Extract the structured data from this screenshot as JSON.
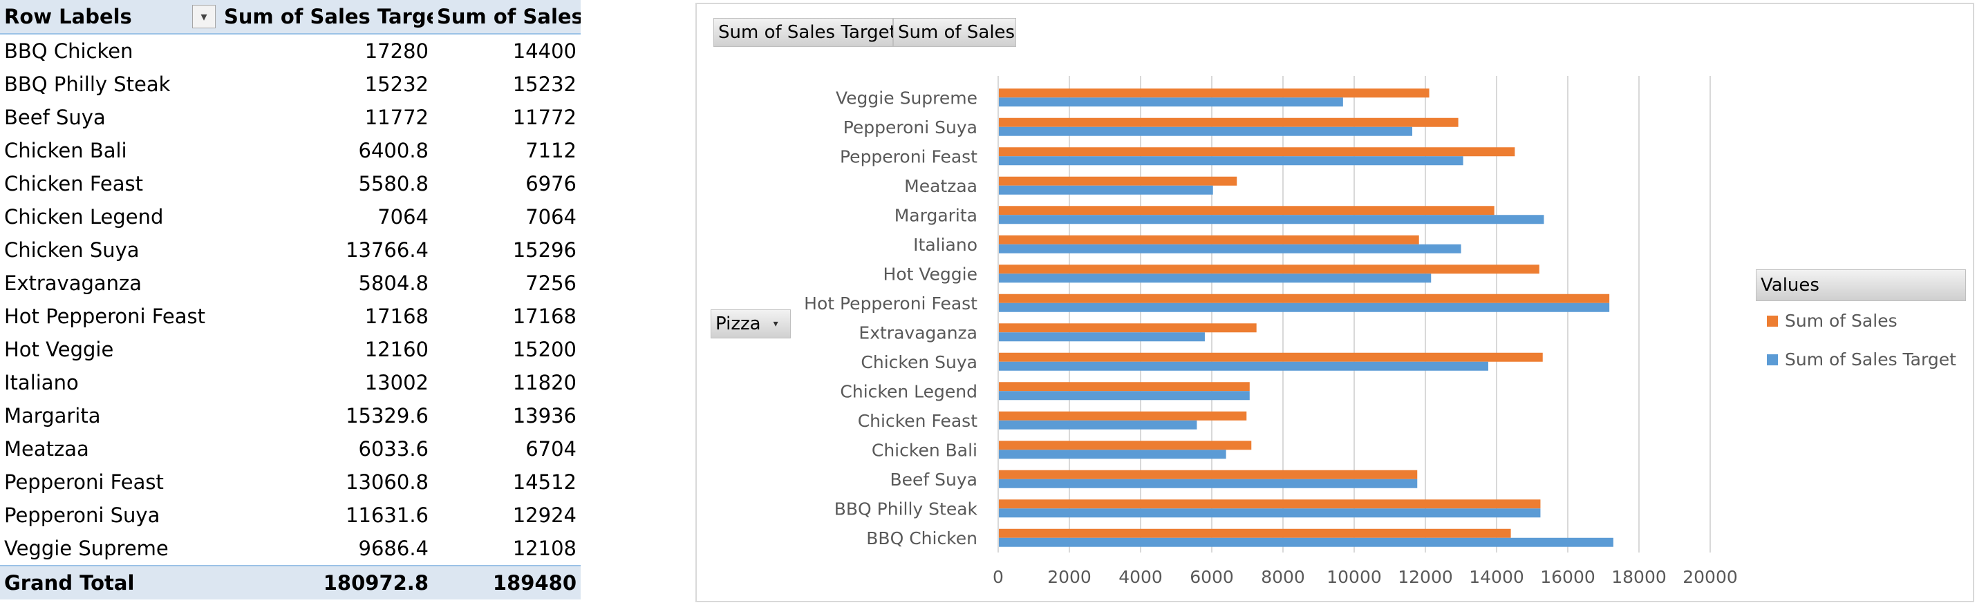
{
  "pivot": {
    "headers": [
      "Row Labels",
      "Sum of Sales Target",
      "Sum of Sales"
    ],
    "rows": [
      {
        "label": "BBQ Chicken",
        "target": "17280",
        "sales": "14400"
      },
      {
        "label": "BBQ Philly Steak",
        "target": "15232",
        "sales": "15232"
      },
      {
        "label": "Beef Suya",
        "target": "11772",
        "sales": "11772"
      },
      {
        "label": "Chicken Bali",
        "target": "6400.8",
        "sales": "7112"
      },
      {
        "label": "Chicken Feast",
        "target": "5580.8",
        "sales": "6976"
      },
      {
        "label": "Chicken Legend",
        "target": "7064",
        "sales": "7064"
      },
      {
        "label": "Chicken Suya",
        "target": "13766.4",
        "sales": "15296"
      },
      {
        "label": "Extravaganza",
        "target": "5804.8",
        "sales": "7256"
      },
      {
        "label": "Hot Pepperoni Feast",
        "target": "17168",
        "sales": "17168"
      },
      {
        "label": "Hot Veggie",
        "target": "12160",
        "sales": "15200"
      },
      {
        "label": "Italiano",
        "target": "13002",
        "sales": "11820"
      },
      {
        "label": "Margarita",
        "target": "15329.6",
        "sales": "13936"
      },
      {
        "label": "Meatzaa",
        "target": "6033.6",
        "sales": "6704"
      },
      {
        "label": "Pepperoni Feast",
        "target": "13060.8",
        "sales": "14512"
      },
      {
        "label": "Pepperoni Suya",
        "target": "11631.6",
        "sales": "12924"
      },
      {
        "label": "Veggie Supreme",
        "target": "9686.4",
        "sales": "12108"
      }
    ],
    "total": {
      "label": "Grand Total",
      "target": "180972.8",
      "sales": "189480"
    }
  },
  "chart_buttons": {
    "value_field_1": "Sum of Sales Target",
    "value_field_2": "Sum of Sales",
    "axis_field": "Pizza"
  },
  "legend": {
    "title": "Values",
    "position": "right"
  },
  "colors": {
    "sales": "#ed7d31",
    "target": "#5b9bd5",
    "gridline": "#d9d9d9",
    "header_fill": "#dce6f1"
  },
  "chart_data": {
    "type": "bar",
    "orientation": "horizontal",
    "categories": [
      "BBQ Chicken",
      "BBQ Philly Steak",
      "Beef Suya",
      "Chicken Bali",
      "Chicken Feast",
      "Chicken Legend",
      "Chicken Suya",
      "Extravaganza",
      "Hot Pepperoni Feast",
      "Hot Veggie",
      "Italiano",
      "Margarita",
      "Meatzaa",
      "Pepperoni Feast",
      "Pepperoni Suya",
      "Veggie Supreme"
    ],
    "series": [
      {
        "name": "Sum of Sales Target",
        "color": "#5b9bd5",
        "values": [
          17280,
          15232,
          11772,
          6400.8,
          5580.8,
          7064,
          13766.4,
          5804.8,
          17168,
          12160,
          13002,
          15329.6,
          6033.6,
          13060.8,
          11631.6,
          9686.4
        ]
      },
      {
        "name": "Sum of Sales",
        "color": "#ed7d31",
        "values": [
          14400,
          15232,
          11772,
          7112,
          6976,
          7064,
          15296,
          7256,
          17168,
          15200,
          11820,
          13936,
          6704,
          14512,
          12924,
          12108
        ]
      }
    ],
    "xlim": [
      0,
      20000
    ],
    "xticks": [
      0,
      2000,
      4000,
      6000,
      8000,
      10000,
      12000,
      14000,
      16000,
      18000,
      20000
    ],
    "grid": true,
    "legend_position": "right"
  }
}
